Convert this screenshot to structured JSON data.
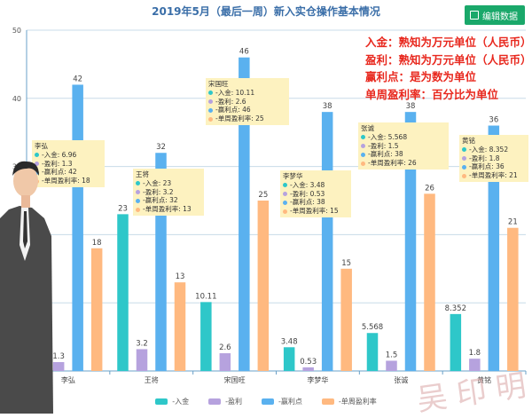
{
  "title": "2019年5月（最后一周）新入实仓操作基本情况",
  "edit_button": {
    "label": "编辑数据",
    "icon": "edit-icon"
  },
  "notes": [
    "入金：熟知为万元单位（人民币）",
    "盈利：熟知为万元单位（人民币）",
    "赢利点：是为数为单位",
    "单周盈利率：百分比为单位"
  ],
  "chart_data": {
    "type": "bar",
    "title": "2019年5月（最后一周）新入实仓操作基本情况",
    "xlabel": "",
    "ylabel": "",
    "ylim": [
      0,
      50
    ],
    "y_ticks": [
      0,
      10,
      20,
      30,
      40,
      50
    ],
    "grid": true,
    "legend_position": "bottom",
    "categories": [
      "李弘",
      "王将",
      "宋国旺",
      "李梦华",
      "张诚",
      "黄铭"
    ],
    "series": [
      {
        "name": "-入金",
        "color": "#2ec7c9",
        "values": [
          6.96,
          23,
          10.11,
          3.48,
          5.568,
          8.352
        ],
        "labels": [
          "6.96",
          "23",
          "10.11",
          "3.48",
          "5.568",
          "8.352"
        ]
      },
      {
        "name": "-盈利",
        "color": "#b6a2de",
        "values": [
          1.3,
          3.2,
          2.6,
          0.53,
          1.5,
          1.8
        ],
        "labels": [
          "1.3",
          "3.2",
          "2.6",
          "0.53",
          "1.5",
          "1.8"
        ]
      },
      {
        "name": "-赢利点",
        "color": "#5ab1ef",
        "values": [
          42,
          32,
          46,
          38,
          38,
          36
        ],
        "labels": [
          "42",
          "32",
          "46",
          "38",
          "38",
          "36"
        ]
      },
      {
        "name": "-单周盈利率",
        "color": "#ffb980",
        "values": [
          18,
          13,
          25,
          15,
          26,
          21
        ],
        "labels": [
          "18",
          "13",
          "25",
          "15",
          "26",
          "21"
        ]
      }
    ],
    "tooltips": [
      {
        "name": "李弘",
        "rows": [
          "-入金: 6.96",
          "-盈利: 1.3",
          "-赢利点: 42",
          "-单周盈利率: 18"
        ]
      },
      {
        "name": "王将",
        "rows": [
          "-入金: 23",
          "-盈利: 3.2",
          "-赢利点: 32",
          "-单周盈利率: 13"
        ]
      },
      {
        "name": "宋国旺",
        "rows": [
          "-入金: 10.11",
          "-盈利: 2.6",
          "-赢利点: 46",
          "-单周盈利率: 25"
        ]
      },
      {
        "name": "李梦华",
        "rows": [
          "-入金: 3.48",
          "-盈利: 0.53",
          "-赢利点: 38",
          "-单周盈利率: 15"
        ]
      },
      {
        "name": "张诚",
        "rows": [
          "-入金: 5.568",
          "-盈利: 1.5",
          "-赢利点: 38",
          "-单周盈利率: 26"
        ]
      },
      {
        "name": "黄铭",
        "rows": [
          "-入金: 8.352",
          "-盈利: 1.8",
          "-赢利点: 36",
          "-单周盈利率: 21"
        ]
      }
    ]
  },
  "watermark": "吴印明"
}
